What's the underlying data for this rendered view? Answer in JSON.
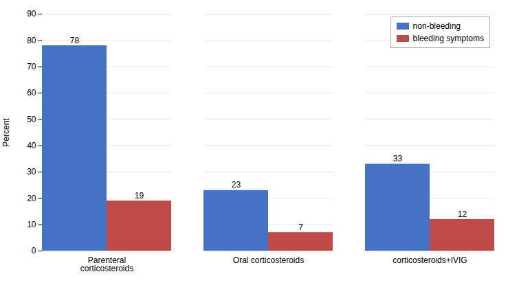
{
  "chart_data": {
    "type": "bar",
    "categories": [
      "Parenteral\ncorticosteroids",
      "Oral corticosteroids",
      "corticosteroids+IVIG"
    ],
    "series": [
      {
        "name": "non-bleeding",
        "color": "#4472C4",
        "values": [
          78,
          23,
          33
        ]
      },
      {
        "name": "bleeding symptoms",
        "color": "#BE4B48",
        "values": [
          19,
          7,
          12
        ]
      }
    ],
    "ylabel": "Percent",
    "ylim": [
      0,
      90
    ],
    "yticks": [
      0,
      10,
      20,
      30,
      40,
      50,
      60,
      70,
      80,
      90
    ],
    "grid": true,
    "legend": "upper right",
    "data_labels": true
  }
}
